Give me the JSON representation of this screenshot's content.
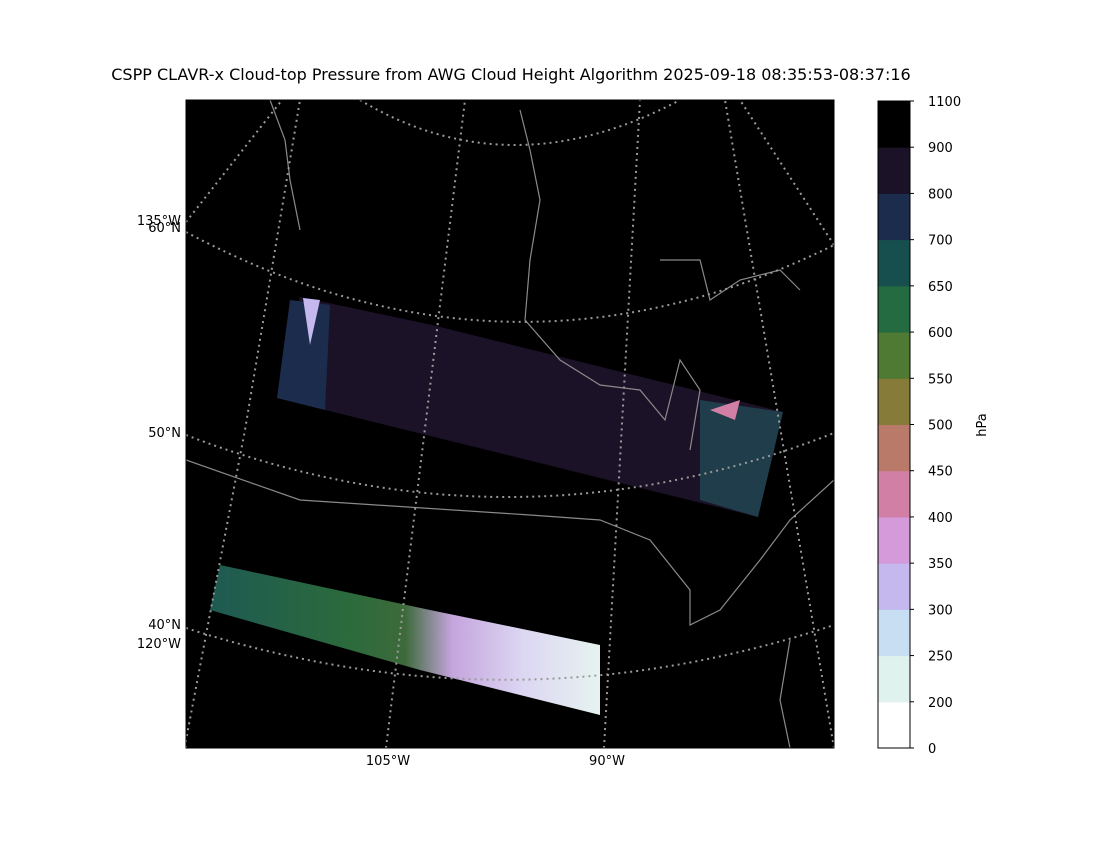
{
  "title": "CSPP CLAVR-x Cloud-top Pressure from AWG Cloud Height Algorithm 2025-09-18 08:35:53-08:37:16",
  "map": {
    "graticule_labels": [
      "135°W",
      "60°N",
      "50°N",
      "40°N",
      "120°W",
      "105°W",
      "90°W"
    ]
  },
  "colorbar": {
    "label": "hPa",
    "ticks": [
      0,
      200,
      250,
      300,
      350,
      400,
      450,
      500,
      550,
      600,
      650,
      700,
      800,
      900,
      1100
    ],
    "colors": [
      "#ffffff",
      "#dff2ee",
      "#c8def3",
      "#c4b8ee",
      "#d49ad9",
      "#d17fa5",
      "#b97a6a",
      "#877b3a",
      "#4e7a33",
      "#256b41",
      "#174f4e",
      "#1c2c4d",
      "#1c1228",
      "#000000"
    ]
  }
}
